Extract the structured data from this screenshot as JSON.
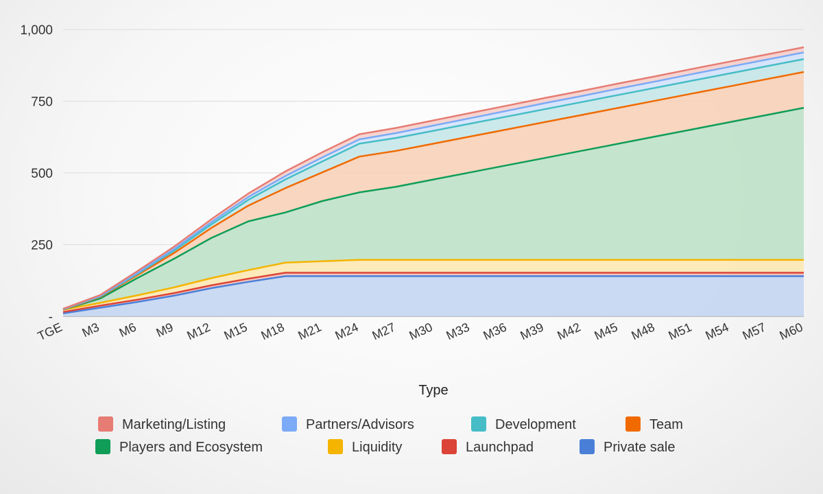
{
  "chart_data": {
    "type": "area",
    "stacked": true,
    "title": "",
    "xlabel": "Type",
    "ylabel": "",
    "ylim": [
      0,
      1000
    ],
    "y_ticks": [
      {
        "value": 0,
        "label": "-"
      },
      {
        "value": 250,
        "label": "250"
      },
      {
        "value": 500,
        "label": "500"
      },
      {
        "value": 750,
        "label": "750"
      },
      {
        "value": 1000,
        "label": "1,000"
      }
    ],
    "grid": true,
    "legend_position": "bottom",
    "categories": [
      "TGE",
      "M3",
      "M6",
      "M9",
      "M12",
      "M15",
      "M18",
      "M21",
      "M24",
      "M27",
      "M30",
      "M33",
      "M36",
      "M39",
      "M42",
      "M45",
      "M48",
      "M51",
      "M54",
      "M57",
      "M60"
    ],
    "series": [
      {
        "name": "Private sale",
        "color": "#4a7fd8",
        "fill": "#c4d6f2",
        "values": [
          10,
          30,
          50,
          72,
          98,
          120,
          140,
          140,
          140,
          140,
          140,
          140,
          140,
          140,
          140,
          140,
          140,
          140,
          140,
          140,
          140
        ]
      },
      {
        "name": "Launchpad",
        "color": "#db4437",
        "fill": "#f2c0bb",
        "values": [
          5,
          7,
          8,
          9,
          10,
          11,
          12,
          12,
          12,
          12,
          12,
          12,
          12,
          12,
          12,
          12,
          12,
          12,
          12,
          12,
          12
        ]
      },
      {
        "name": "Liquidity",
        "color": "#f4b400",
        "fill": "#fce8b2",
        "values": [
          8,
          10,
          15,
          20,
          25,
          30,
          35,
          40,
          45,
          45,
          45,
          45,
          45,
          45,
          45,
          45,
          45,
          45,
          45,
          45,
          45
        ]
      },
      {
        "name": "Players and Ecosystem",
        "color": "#0f9d58",
        "fill": "#bfe1c8",
        "values": [
          0,
          15,
          60,
          100,
          140,
          170,
          175,
          210,
          235,
          255,
          280,
          305,
          330,
          355,
          380,
          405,
          430,
          455,
          480,
          505,
          530
        ]
      },
      {
        "name": "Team",
        "color": "#f06a00",
        "fill": "#f7d2b8",
        "values": [
          0,
          5,
          10,
          20,
          35,
          55,
          85,
          100,
          125,
          125,
          125,
          125,
          125,
          125,
          125,
          125,
          125,
          125,
          125,
          125,
          125
        ]
      },
      {
        "name": "Development",
        "color": "#46bdc6",
        "fill": "#c5e7e9",
        "values": [
          1,
          2,
          4,
          8,
          12,
          20,
          30,
          38,
          45,
          45,
          45,
          45,
          45,
          45,
          45,
          45,
          45,
          45,
          45,
          45,
          45
        ]
      },
      {
        "name": "Partners/Advisors",
        "color": "#7baaf7",
        "fill": "#d3e2fb",
        "values": [
          1,
          2,
          4,
          6,
          8,
          10,
          12,
          14,
          15,
          17,
          18,
          19,
          20,
          21,
          21,
          22,
          22,
          23,
          23,
          23,
          23
        ]
      },
      {
        "name": "Marketing/Listing",
        "color": "#e67c73",
        "fill": "#f5cfcb",
        "values": [
          1,
          3,
          6,
          8,
          10,
          12,
          16,
          18,
          18,
          18,
          18,
          18,
          18,
          18,
          18,
          18,
          18,
          18,
          18,
          18,
          18
        ]
      }
    ],
    "legend_order": [
      "Marketing/Listing",
      "Partners/Advisors",
      "Development",
      "Team",
      "Players and Ecosystem",
      "Liquidity",
      "Launchpad",
      "Private sale"
    ]
  }
}
